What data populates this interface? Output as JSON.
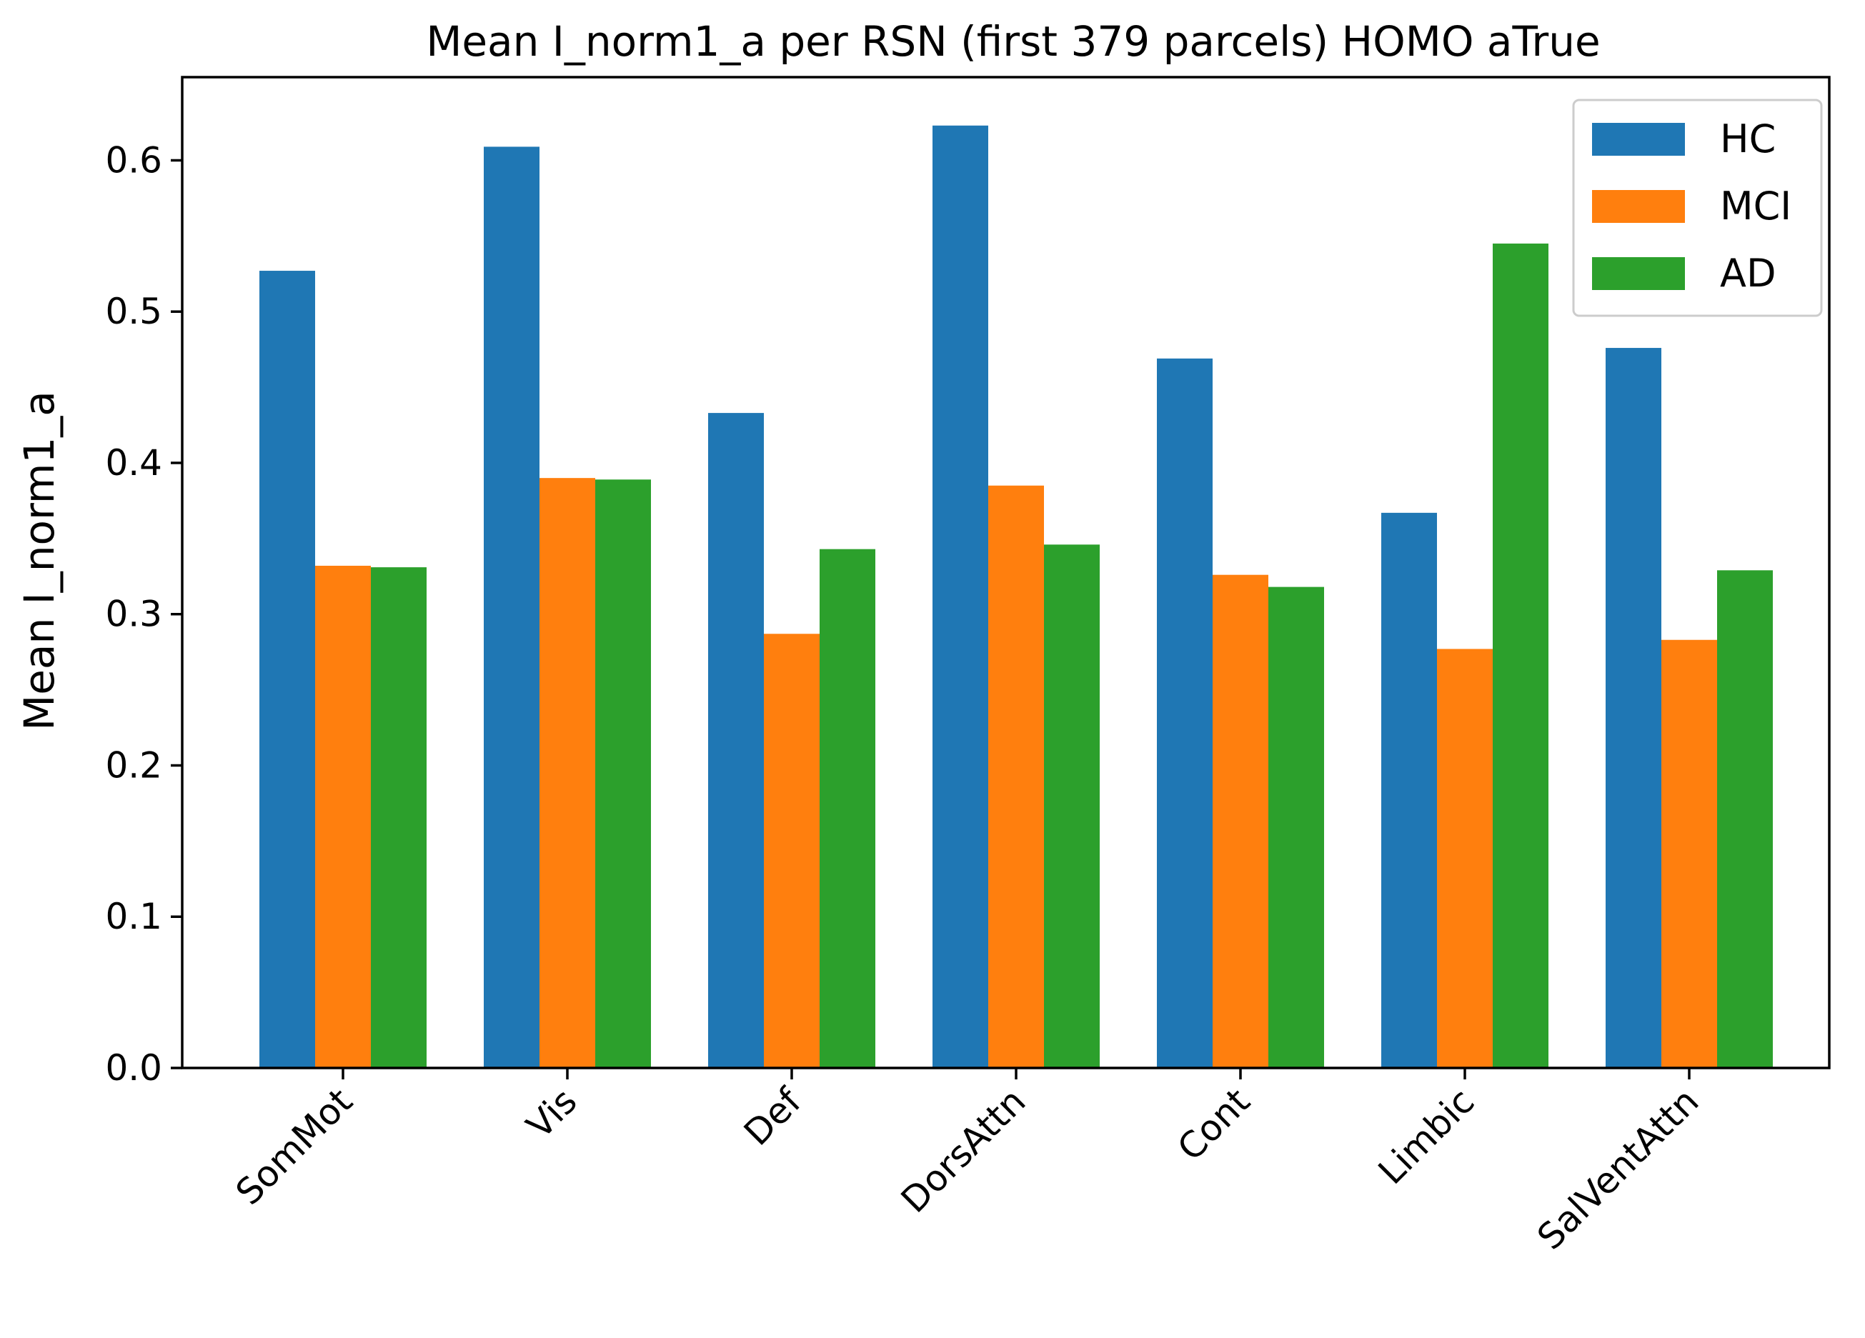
{
  "chart_data": {
    "type": "bar",
    "title": "Mean I_norm1_a per RSN (first 379 parcels) HOMO aTrue",
    "xlabel": "",
    "ylabel": "Mean I_norm1_a",
    "categories": [
      "SomMot",
      "Vis",
      "Def",
      "DorsAttn",
      "Cont",
      "Limbic",
      "SalVentAttn"
    ],
    "series": [
      {
        "name": "HC",
        "color": "#1f77b4",
        "values": [
          0.527,
          0.609,
          0.433,
          0.623,
          0.469,
          0.367,
          0.476
        ]
      },
      {
        "name": "MCI",
        "color": "#ff7f0e",
        "values": [
          0.332,
          0.39,
          0.287,
          0.385,
          0.326,
          0.277,
          0.283
        ]
      },
      {
        "name": "AD",
        "color": "#2ca02c",
        "values": [
          0.331,
          0.389,
          0.343,
          0.346,
          0.318,
          0.545,
          0.329
        ]
      }
    ],
    "ylim": [
      0,
      0.655
    ],
    "yticks": [
      "0.0",
      "0.1",
      "0.2",
      "0.3",
      "0.4",
      "0.5",
      "0.6"
    ],
    "legend_position": "top-right",
    "grid": false
  }
}
